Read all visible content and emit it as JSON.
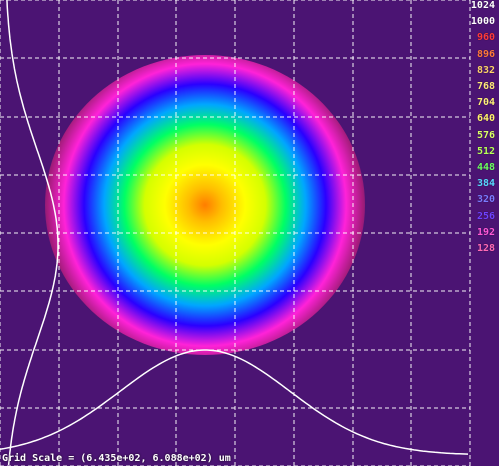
{
  "chart_data": {
    "type": "heatmap",
    "colormap": [
      "#4b1473",
      "#a31c7a",
      "#ff22d8",
      "#2a00ff",
      "#00a6ff",
      "#00ff64",
      "#d4ff00",
      "#ffff00",
      "#ffbd00",
      "#ff7d00",
      "#ff4b00",
      "#ffffff"
    ],
    "beam_center": [
      0.0,
      0.0
    ],
    "beam_1e2_radius": [
      1.0,
      1.0
    ],
    "legend_values": [
      "1024",
      "1000",
      "960",
      "896",
      "832",
      "768",
      "704",
      "640",
      "576",
      "512",
      "448",
      "384",
      "320",
      "256",
      "192",
      "128"
    ],
    "legend_colors": [
      "#ffffff",
      "#ffffff",
      "#ff3a3a",
      "#ff7a3a",
      "#ffd36b",
      "#ffe97a",
      "#fff07a",
      "#fff36b",
      "#d9ff66",
      "#b7ff58",
      "#6cff61",
      "#58d7ff",
      "#7b7bff",
      "#6f42ff",
      "#ff58d8",
      "#ff6ab6"
    ],
    "grid_scale_label": "Grid Scale = (6.435e+02, 6.088e+02) um",
    "grid": true,
    "profile_lines": [
      "horizontal",
      "vertical"
    ]
  }
}
